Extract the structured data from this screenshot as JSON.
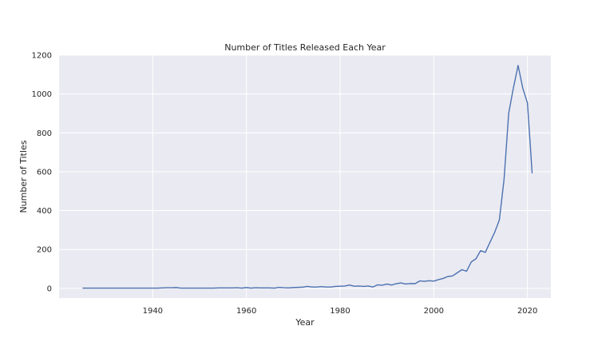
{
  "chart_data": {
    "type": "line",
    "title": "Number of Titles Released Each Year",
    "xlabel": "Year",
    "ylabel": "Number of Titles",
    "xlim": [
      1920,
      2025
    ],
    "ylim": [
      -50,
      1200
    ],
    "xticks": [
      1940,
      1960,
      1980,
      2000,
      2020
    ],
    "yticks": [
      0,
      200,
      400,
      600,
      800,
      1000,
      1200
    ],
    "grid": true,
    "colors": {
      "background": "#eaeaf2",
      "grid": "#ffffff",
      "line": "#4c72b0",
      "text": "#262626"
    },
    "series": [
      {
        "x": [
          1925,
          1926,
          1927,
          1928,
          1929,
          1930,
          1931,
          1932,
          1933,
          1934,
          1935,
          1936,
          1937,
          1938,
          1939,
          1940,
          1941,
          1942,
          1943,
          1944,
          1945,
          1946,
          1947,
          1948,
          1949,
          1950,
          1951,
          1952,
          1953,
          1954,
          1955,
          1956,
          1957,
          1958,
          1959,
          1960,
          1961,
          1962,
          1963,
          1964,
          1965,
          1966,
          1967,
          1968,
          1969,
          1970,
          1971,
          1972,
          1973,
          1974,
          1975,
          1976,
          1977,
          1978,
          1979,
          1980,
          1981,
          1982,
          1983,
          1984,
          1985,
          1986,
          1987,
          1988,
          1989,
          1990,
          1991,
          1992,
          1993,
          1994,
          1995,
          1996,
          1997,
          1998,
          1999,
          2000,
          2001,
          2002,
          2003,
          2004,
          2005,
          2006,
          2007,
          2008,
          2009,
          2010,
          2011,
          2012,
          2013,
          2014,
          2015,
          2016,
          2017,
          2018,
          2019,
          2020,
          2021
        ],
        "values": [
          1,
          1,
          1,
          1,
          1,
          1,
          1,
          1,
          1,
          1,
          1,
          1,
          1,
          1,
          1,
          1,
          1,
          2,
          3,
          3,
          4,
          1,
          1,
          1,
          1,
          1,
          1,
          1,
          1,
          2,
          2,
          2,
          2,
          3,
          1,
          4,
          1,
          3,
          2,
          2,
          2,
          1,
          5,
          3,
          2,
          4,
          5,
          6,
          10,
          7,
          7,
          9,
          7,
          7,
          10,
          11,
          12,
          17,
          11,
          12,
          10,
          12,
          7,
          18,
          16,
          22,
          17,
          24,
          28,
          22,
          25,
          24,
          38,
          36,
          39,
          37,
          45,
          51,
          61,
          64,
          80,
          96,
          88,
          136,
          152,
          194,
          185,
          237,
          288,
          352,
          560,
          902,
          1032,
          1147,
          1030,
          953,
          592
        ]
      }
    ]
  }
}
